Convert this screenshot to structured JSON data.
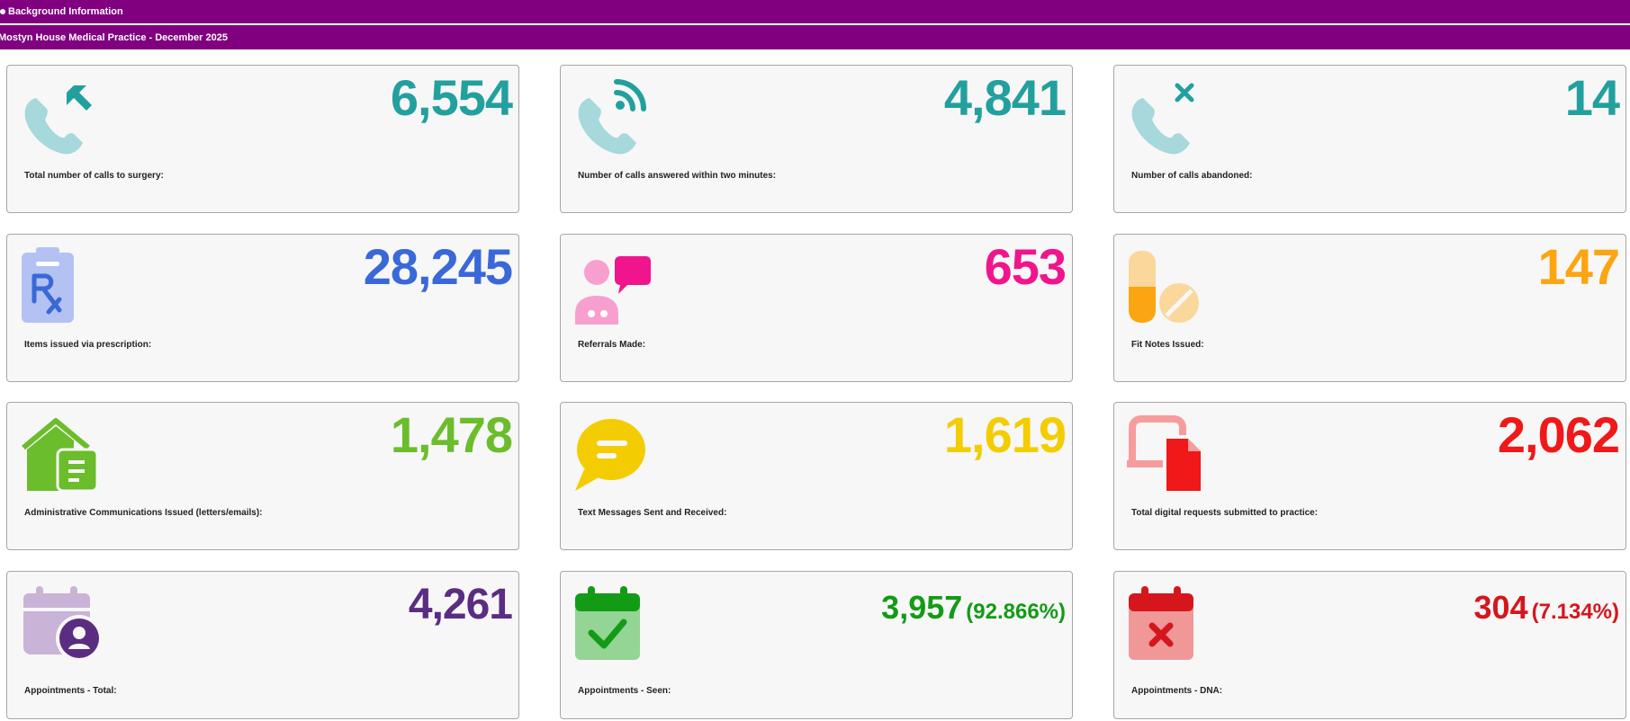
{
  "header": {
    "section_title": "Background Information",
    "practice_title": "Mostyn House Medical Practice - December 2025"
  },
  "colors": {
    "header_bg": "#800080",
    "teal": "#22a09e",
    "blue": "#3a68d8",
    "pink": "#f0158c",
    "orange": "#fca512",
    "green_light": "#6bbd2b",
    "yellow": "#f3cd01",
    "red": "#f01818",
    "purple": "#5b2d82",
    "green_dark": "#139b16",
    "dna_red": "#d6161d"
  },
  "cards": [
    {
      "value": "6,554",
      "label": "Total number of calls to surgery:",
      "icon": "phone-incoming-icon"
    },
    {
      "value": "4,841",
      "label": "Number of calls answered within two minutes:",
      "icon": "phone-answered-icon"
    },
    {
      "value": "14",
      "label": "Number of calls abandoned:",
      "icon": "phone-abandoned-icon"
    },
    {
      "value": "28,245",
      "label": "Items issued via prescription:",
      "icon": "prescription-icon"
    },
    {
      "value": "653",
      "label": "Referrals Made:",
      "icon": "referral-icon"
    },
    {
      "value": "147",
      "label": "Fit Notes Issued:",
      "icon": "pill-icon"
    },
    {
      "value": "1,478",
      "label": "Administrative Communications Issued (letters/emails):",
      "icon": "house-letter-icon"
    },
    {
      "value": "1,619",
      "label": "Text Messages Sent and Received:",
      "icon": "chat-bubble-icon"
    },
    {
      "value": "2,062",
      "label": "Total digital requests submitted to practice:",
      "icon": "digital-request-icon"
    },
    {
      "value": "4,261",
      "label": "Appointments - Total:",
      "icon": "calendar-user-icon"
    },
    {
      "value": "3,957",
      "percent": "(92.866%)",
      "label": "Appointments - Seen:",
      "icon": "calendar-check-icon"
    },
    {
      "value": "304",
      "percent": "(7.134%)",
      "label": "Appointments - DNA:",
      "icon": "calendar-x-icon"
    }
  ]
}
